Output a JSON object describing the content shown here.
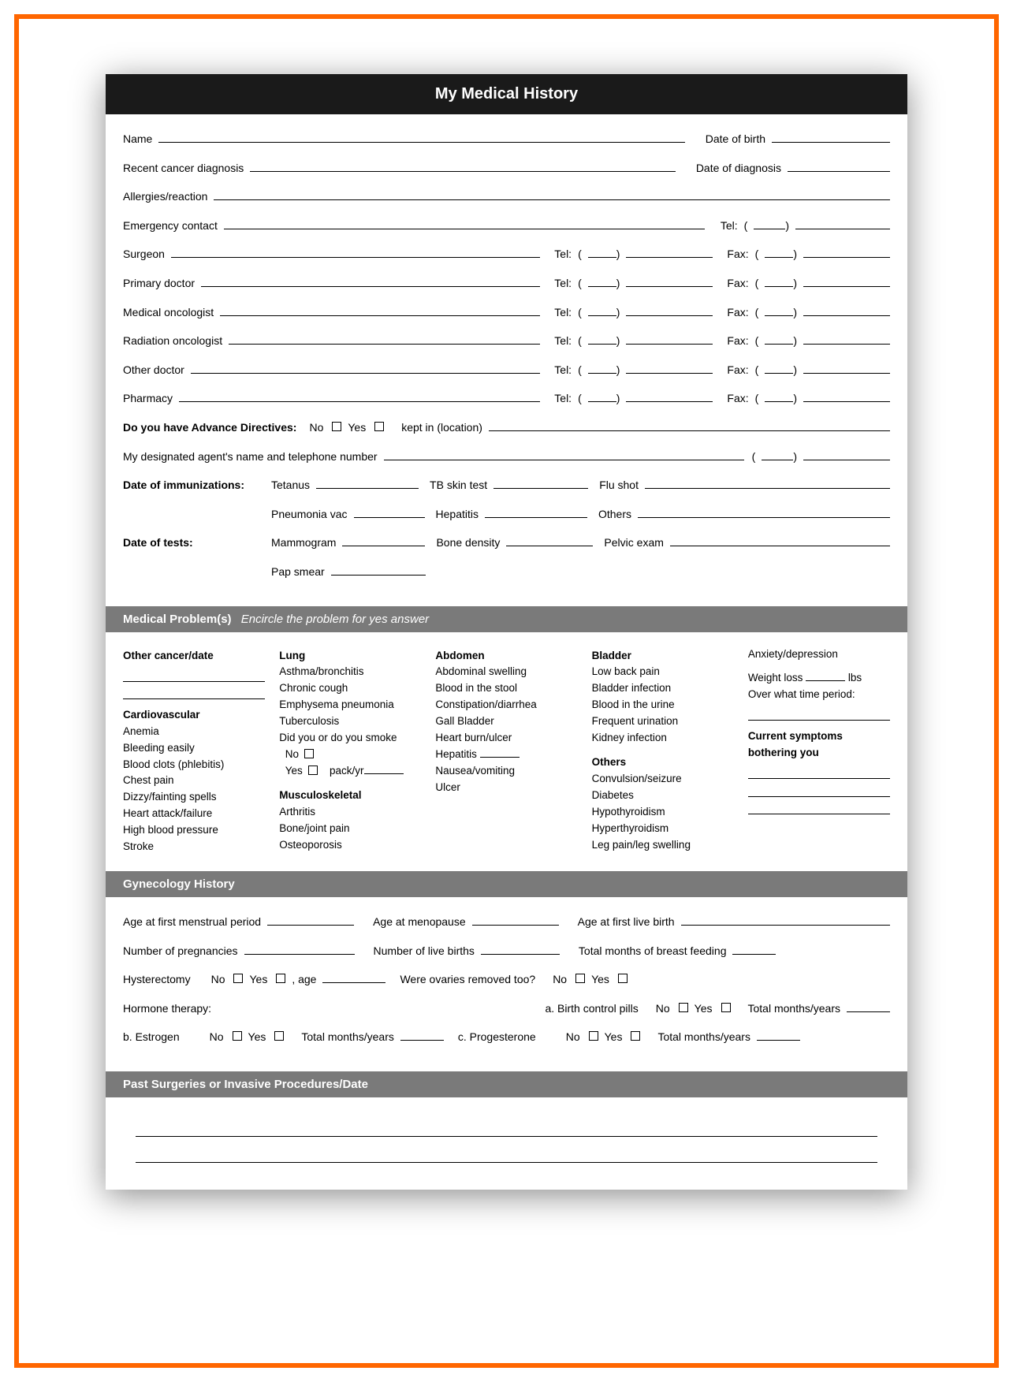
{
  "colors": {
    "frame": "#ff6600",
    "titleBg": "#1a1a1a",
    "sectionBg": "#7a7a7a"
  },
  "title": "My Medical History",
  "fields": {
    "name": "Name",
    "dob": "Date of birth",
    "recentDx": "Recent cancer diagnosis",
    "dxDate": "Date of diagnosis",
    "allergies": "Allergies/reaction",
    "emergency": "Emergency contact",
    "tel": "Tel:",
    "fax": "Fax:",
    "surgeon": "Surgeon",
    "primary": "Primary doctor",
    "medOnc": "Medical oncologist",
    "radOnc": "Radiation oncologist",
    "otherDoc": "Other doctor",
    "pharmacy": "Pharmacy",
    "advance": "Do you have Advance Directives:",
    "no": "No",
    "yes": "Yes",
    "keptIn": "kept in (location)",
    "agent": "My designated agent's name and telephone number",
    "immun": "Date of immunizations:",
    "tetanus": "Tetanus",
    "tb": "TB skin test",
    "flu": "Flu shot",
    "pneumonia": "Pneumonia vac",
    "hepatitis": "Hepatitis",
    "others": "Others",
    "tests": "Date of tests:",
    "mammo": "Mammogram",
    "bone": "Bone density",
    "pelvic": "Pelvic exam",
    "pap": "Pap smear"
  },
  "problems": {
    "header": "Medical Problem(s)",
    "sub": "Encircle the problem for yes answer",
    "col1h1": "Other cancer/date",
    "col1h2": "Cardiovascular",
    "col1": [
      "Anemia",
      "Bleeding easily",
      "Blood clots (phlebitis)",
      "Chest pain",
      "Dizzy/fainting spells",
      "Heart attack/failure",
      "High blood pressure",
      "Stroke"
    ],
    "col2h1": "Lung",
    "col2a": [
      "Asthma/bronchitis",
      "Chronic cough",
      "Emphysema pneumonia",
      "Tuberculosis",
      "Did you or do you smoke"
    ],
    "col2smokeNo": "No",
    "col2smokeYes": "Yes",
    "packyr": "pack/yr",
    "col2h2": "Musculoskeletal",
    "col2b": [
      "Arthritis",
      "Bone/joint pain",
      "Osteoporosis"
    ],
    "col3h": "Abdomen",
    "col3": [
      "Abdominal swelling",
      "Blood in the stool",
      "Constipation/diarrhea",
      "Gall Bladder",
      "Heart burn/ulcer"
    ],
    "col3hep": "Hepatitis",
    "col3b": [
      "Nausea/vomiting",
      "Ulcer"
    ],
    "col4h1": "Bladder",
    "col4a": [
      "Low back pain",
      "Bladder infection",
      "Blood in the urine",
      "Frequent urination",
      "Kidney infection"
    ],
    "col4h2": "Others",
    "col4b": [
      "Convulsion/seizure",
      "Diabetes",
      "Hypothyroidism",
      "Hyperthyroidism",
      "Leg pain/leg swelling"
    ],
    "col5a": "Anxiety/depression",
    "col5w": "Weight loss",
    "lbs": "lbs",
    "col5t": "Over what time period:",
    "col5h": "Current symptoms bothering you"
  },
  "gyn": {
    "header": "Gynecology History",
    "firstPeriod": "Age at first menstrual period",
    "menopause": "Age at menopause",
    "firstBirth": "Age at first live birth",
    "pregs": "Number of pregnancies",
    "liveBirths": "Number of live births",
    "breastFeed": "Total months of breast feeding",
    "hyst": "Hysterectomy",
    "age": ", age",
    "ovaries": "Were ovaries removed too?",
    "hormone": "Hormone therapy:",
    "bcp": "a. Birth control pills",
    "estrogen": "b. Estrogen",
    "progest": "c. Progesterone",
    "tmy": "Total months/years"
  },
  "past": {
    "header": "Past Surgeries or Invasive Procedures/Date"
  }
}
